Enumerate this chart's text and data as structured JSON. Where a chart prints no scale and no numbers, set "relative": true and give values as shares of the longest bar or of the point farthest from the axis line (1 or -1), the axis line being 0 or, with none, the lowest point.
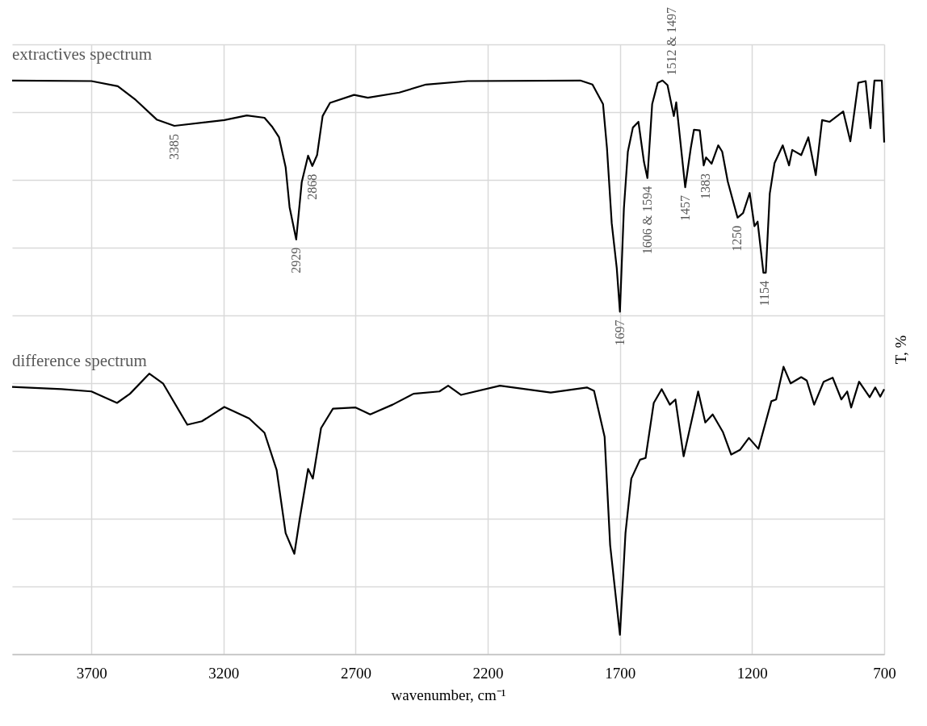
{
  "chart_data": {
    "type": "line",
    "relative": true,
    "xlabel": "wavenumber, cm⁻¹",
    "ylabel": "T, %",
    "xlim": [
      4000,
      700
    ],
    "xticks": [
      3700,
      3200,
      2700,
      2200,
      1700,
      1200,
      700
    ],
    "grid": true,
    "marker": "none",
    "line_style": "solid",
    "series": [
      {
        "name": "extractives spectrum",
        "color": "#000000",
        "x": [
          4000,
          3700,
          3600,
          3532,
          3453,
          3386,
          3197,
          3112,
          3045,
          3017,
          2990,
          2965,
          2950,
          2925,
          2904,
          2880,
          2864,
          2846,
          2825,
          2797,
          2706,
          2654,
          2535,
          2434,
          2276,
          1850,
          1804,
          1764,
          1749,
          1731,
          1712,
          1700,
          1685,
          1670,
          1651,
          1630,
          1609,
          1596,
          1578,
          1557,
          1539,
          1520,
          1496,
          1487,
          1453,
          1432,
          1420,
          1398,
          1383,
          1374,
          1353,
          1328,
          1313,
          1292,
          1255,
          1234,
          1209,
          1191,
          1179,
          1157,
          1148,
          1133,
          1115,
          1084,
          1060,
          1048,
          1014,
          987,
          959,
          935,
          907,
          855,
          828,
          798,
          770,
          752,
          737,
          709,
          700
        ],
        "values": [
          1.0,
          0.999,
          0.99,
          0.966,
          0.932,
          0.921,
          0.931,
          0.939,
          0.935,
          0.92,
          0.901,
          0.849,
          0.779,
          0.723,
          0.823,
          0.869,
          0.851,
          0.87,
          0.938,
          0.961,
          0.975,
          0.97,
          0.979,
          0.993,
          0.999,
          1.0,
          0.993,
          0.959,
          0.882,
          0.751,
          0.673,
          0.597,
          0.777,
          0.876,
          0.918,
          0.928,
          0.858,
          0.83,
          0.959,
          0.996,
          1.0,
          0.992,
          0.938,
          0.962,
          0.814,
          0.882,
          0.914,
          0.913,
          0.852,
          0.866,
          0.855,
          0.887,
          0.876,
          0.824,
          0.761,
          0.769,
          0.804,
          0.746,
          0.754,
          0.665,
          0.665,
          0.803,
          0.856,
          0.887,
          0.852,
          0.879,
          0.87,
          0.901,
          0.835,
          0.931,
          0.928,
          0.946,
          0.894,
          0.996,
          0.999,
          0.917,
          1.0,
          1.0,
          0.892
        ]
      },
      {
        "name": "difference spectrum",
        "color": "#000000",
        "x": [
          4000,
          3813,
          3700,
          3603,
          3554,
          3481,
          3429,
          3337,
          3282,
          3197,
          3103,
          3045,
          2999,
          2965,
          2932,
          2911,
          2880,
          2862,
          2831,
          2786,
          2700,
          2645,
          2560,
          2481,
          2383,
          2350,
          2301,
          2154,
          1962,
          1825,
          1798,
          1758,
          1737,
          1700,
          1679,
          1657,
          1624,
          1603,
          1572,
          1542,
          1511,
          1490,
          1459,
          1404,
          1377,
          1349,
          1310,
          1279,
          1246,
          1212,
          1176,
          1127,
          1109,
          1081,
          1054,
          1014,
          993,
          965,
          929,
          895,
          862,
          840,
          825,
          795,
          755,
          734,
          715,
          700
        ],
        "values": [
          0.466,
          0.462,
          0.458,
          0.438,
          0.454,
          0.489,
          0.472,
          0.4,
          0.406,
          0.431,
          0.411,
          0.386,
          0.321,
          0.211,
          0.175,
          0.238,
          0.323,
          0.306,
          0.394,
          0.428,
          0.43,
          0.418,
          0.435,
          0.454,
          0.458,
          0.468,
          0.452,
          0.468,
          0.456,
          0.465,
          0.459,
          0.379,
          0.19,
          0.034,
          0.211,
          0.306,
          0.339,
          0.342,
          0.438,
          0.462,
          0.435,
          0.444,
          0.345,
          0.458,
          0.404,
          0.418,
          0.387,
          0.348,
          0.356,
          0.377,
          0.358,
          0.441,
          0.444,
          0.501,
          0.472,
          0.483,
          0.477,
          0.435,
          0.475,
          0.482,
          0.444,
          0.458,
          0.43,
          0.475,
          0.448,
          0.465,
          0.449,
          0.462
        ]
      }
    ],
    "annotations": [
      {
        "text": "3385",
        "x": 3385,
        "y": 0.921
      },
      {
        "text": "2929",
        "x": 2925,
        "y": 0.723
      },
      {
        "text": "2868",
        "x": 2864,
        "y": 0.851
      },
      {
        "text": "1697",
        "x": 1700,
        "y": 0.597
      },
      {
        "text": "1606 & 1594",
        "x": 1596,
        "y": 0.83
      },
      {
        "text": "1512 & 1497",
        "x": 1505,
        "y": 0.992
      },
      {
        "text": "1457",
        "x": 1453,
        "y": 0.814
      },
      {
        "text": "1383",
        "x": 1374,
        "y": 0.852
      },
      {
        "text": "1250",
        "x": 1255,
        "y": 0.761
      },
      {
        "text": "1154",
        "x": 1152,
        "y": 0.665
      }
    ]
  }
}
